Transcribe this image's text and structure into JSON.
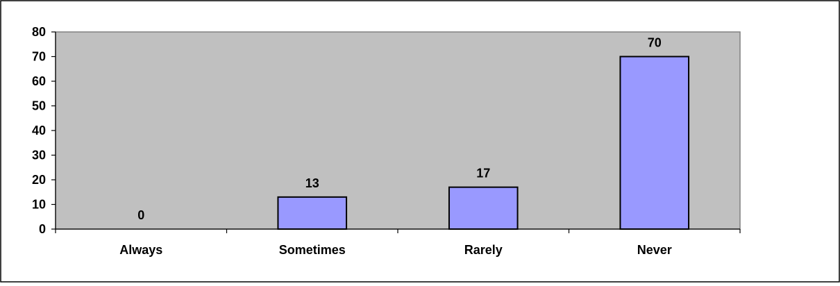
{
  "chart_data": {
    "type": "bar",
    "categories": [
      "Always",
      "Sometimes",
      "Rarely",
      "Never"
    ],
    "values": [
      0,
      13,
      17,
      70
    ],
    "data_labels": [
      "0",
      "13",
      "17",
      "70"
    ],
    "title": "",
    "xlabel": "",
    "ylabel": "",
    "ylim": [
      0,
      80
    ],
    "yticks": [
      0,
      10,
      20,
      30,
      40,
      50,
      60,
      70,
      80
    ],
    "ytick_labels": [
      "0",
      "10",
      "20",
      "30",
      "40",
      "50",
      "60",
      "70",
      "80"
    ],
    "grid": false,
    "legend": "none",
    "colors": {
      "plot_area": "#c0c0c0",
      "bar_fill": "#9999ff",
      "bar_stroke": "#000000",
      "frame": "#808080",
      "axis": "#000000"
    }
  }
}
